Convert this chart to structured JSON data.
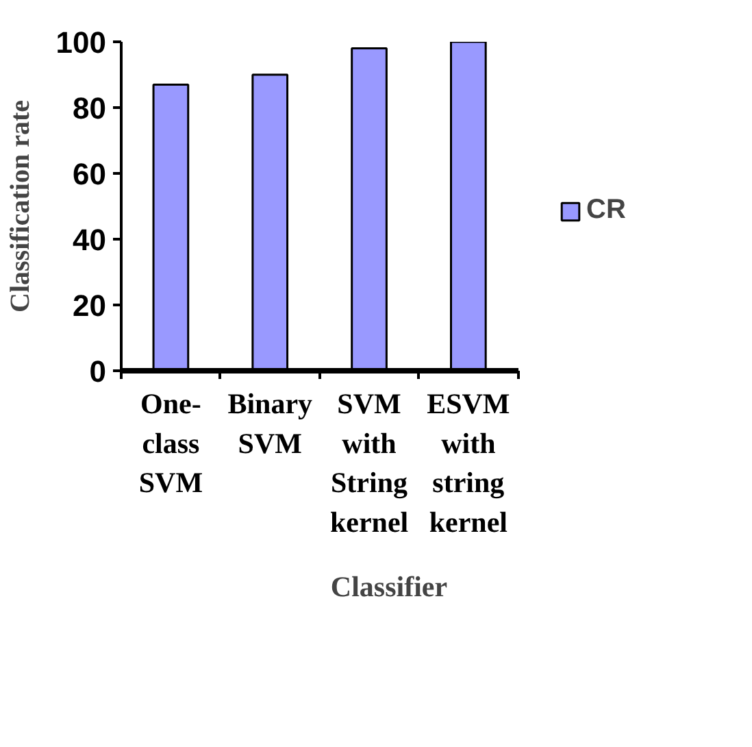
{
  "chart_data": {
    "type": "bar",
    "xlabel": "Classifier",
    "ylabel": "Classification rate",
    "categories": [
      "One-class SVM",
      "Binary SVM",
      "SVM with String kernel",
      "ESVM with string kernel"
    ],
    "series": [
      {
        "name": "CR",
        "color": "#9999ff",
        "values": [
          87,
          90,
          98,
          100
        ]
      }
    ],
    "ylim": [
      0,
      100
    ],
    "yticks": [
      0,
      20,
      40,
      60,
      80,
      100
    ],
    "legend": "right"
  }
}
